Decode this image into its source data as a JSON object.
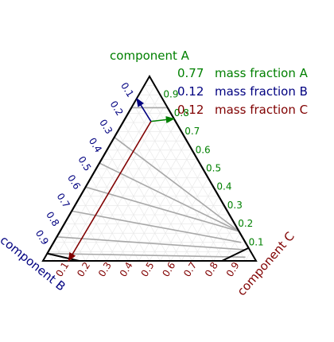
{
  "chart_data": {
    "type": "ternary",
    "corners": {
      "top": "component A",
      "bottom_left": "component B",
      "bottom_right": "component C"
    },
    "axes": {
      "A": {
        "ticks": [
          "0.1",
          "0.2",
          "0.3",
          "0.4",
          "0.5",
          "0.6",
          "0.7",
          "0.8",
          "0.9"
        ],
        "color": "#008000"
      },
      "B": {
        "ticks": [
          "0.1",
          "0.2",
          "0.3",
          "0.4",
          "0.5",
          "0.6",
          "0.7",
          "0.8",
          "0.9"
        ],
        "color": "#000080"
      },
      "C": {
        "ticks": [
          "0.1",
          "0.2",
          "0.3",
          "0.4",
          "0.5",
          "0.6",
          "0.7",
          "0.8",
          "0.9"
        ],
        "color": "#800000"
      }
    },
    "grid": true,
    "point": {
      "A": 0.77,
      "B": 0.12,
      "C": 0.12
    },
    "readouts": [
      {
        "value": "0.77",
        "label": "mass fraction A",
        "color": "#008000"
      },
      {
        "value": "0.12",
        "label": "mass fraction B",
        "color": "#000080"
      },
      {
        "value": "0.12",
        "label": "mass fraction C",
        "color": "#800000"
      }
    ],
    "phase_boundary": {
      "left": [
        [
          0.83,
          0.17,
          0
        ],
        [
          0.67,
          0.33,
          0
        ],
        [
          0.53,
          0.47,
          0
        ],
        [
          0.4,
          0.6,
          0
        ],
        [
          0.27,
          0.73,
          0
        ],
        [
          0.13,
          0.87,
          0
        ],
        [
          0.04,
          0.96,
          0
        ],
        [
          0,
          0.83,
          0.17
        ]
      ],
      "right": [
        [
          0.83,
          0,
          0.17
        ],
        [
          0.67,
          0,
          0.33
        ],
        [
          0.53,
          0,
          0.47
        ],
        [
          0.4,
          0,
          0.6
        ],
        [
          0.27,
          0,
          0.73
        ],
        [
          0.15,
          0,
          0.85
        ],
        [
          0.07,
          0,
          0.93
        ],
        [
          0,
          0.16,
          0.84
        ]
      ]
    },
    "tie_lines": [
      [
        [
          0.83,
          0.17,
          0
        ],
        [
          0.83,
          0,
          0.17
        ]
      ],
      [
        [
          0.67,
          0.33,
          0
        ],
        [
          0.16,
          0,
          0.84
        ]
      ],
      [
        [
          0.53,
          0.47,
          0
        ],
        [
          0.16,
          0,
          0.84
        ]
      ],
      [
        [
          0.4,
          0.6,
          0
        ],
        [
          0.16,
          0,
          0.84
        ]
      ],
      [
        [
          0.27,
          0.73,
          0
        ],
        [
          0.1,
          0.02,
          0.88
        ]
      ],
      [
        [
          0.13,
          0.87,
          0
        ],
        [
          0.06,
          0.02,
          0.92
        ]
      ],
      [
        [
          0.04,
          0.96,
          0
        ],
        [
          0.02,
          0.04,
          0.94
        ]
      ]
    ]
  }
}
